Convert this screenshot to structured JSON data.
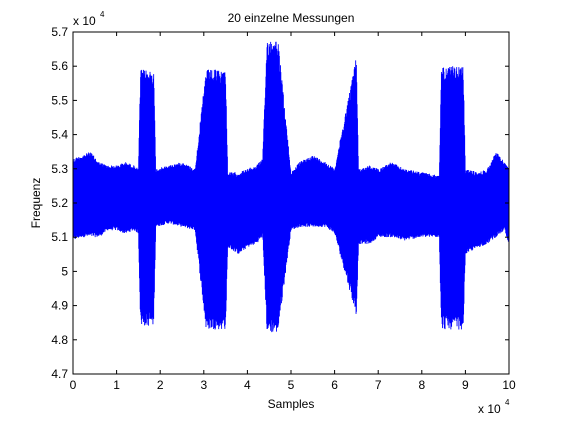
{
  "chart_data": {
    "type": "line",
    "title": "20 einzelne Messungen",
    "xlabel": "Samples",
    "ylabel": "Frequenz",
    "xlim": [
      0,
      100000
    ],
    "ylim": [
      47000,
      57000
    ],
    "x_ticks": [
      0,
      10000,
      20000,
      30000,
      40000,
      50000,
      60000,
      70000,
      80000,
      90000,
      100000
    ],
    "y_ticks": [
      47000,
      48000,
      49000,
      50000,
      51000,
      52000,
      53000,
      54000,
      55000,
      56000,
      57000
    ],
    "x_tick_labels": [
      "0",
      "1",
      "2",
      "3",
      "4",
      "5",
      "6",
      "7",
      "8",
      "9",
      "10"
    ],
    "y_tick_labels": [
      "4.7",
      "4.8",
      "4.9",
      "5",
      "5.1",
      "5.2",
      "5.3",
      "5.4",
      "5.5",
      "5.6",
      "5.7"
    ],
    "x_exponent": {
      "base": "x 10",
      "power": "4"
    },
    "y_exponent": {
      "base": "x 10",
      "power": "4"
    },
    "grid": false,
    "series": [
      {
        "color": "#0000ff",
        "band_envelope": {
          "x": [
            0,
            2000,
            4000,
            6000,
            8000,
            10000,
            12000,
            14000,
            15000,
            15500,
            18500,
            19000,
            22000,
            25000,
            28000,
            30500,
            35000,
            35500,
            38000,
            40000,
            42000,
            43500,
            44500,
            47000,
            50000,
            52000,
            55000,
            58000,
            60000,
            65000,
            65500,
            68000,
            70000,
            73000,
            76000,
            80000,
            84000,
            84500,
            89500,
            90000,
            93000,
            95000,
            97000,
            99000,
            100000
          ],
          "upper": [
            53300,
            53400,
            53500,
            53200,
            53100,
            53100,
            53200,
            53100,
            53000,
            55900,
            55900,
            53000,
            53100,
            53200,
            53000,
            55900,
            55900,
            52900,
            52900,
            53000,
            53100,
            53300,
            56800,
            56800,
            52900,
            53200,
            53400,
            53200,
            53000,
            56300,
            53000,
            53100,
            53000,
            53200,
            53000,
            52900,
            52800,
            56000,
            56000,
            53000,
            52900,
            53000,
            53500,
            53200,
            53000
          ],
          "lower": [
            50900,
            51000,
            51000,
            51000,
            51200,
            51200,
            51100,
            51200,
            51100,
            48400,
            48400,
            51300,
            51400,
            51300,
            51200,
            48300,
            48300,
            50700,
            50500,
            50700,
            50800,
            51000,
            48200,
            48200,
            51200,
            51300,
            51300,
            51300,
            51100,
            48700,
            50800,
            50800,
            51000,
            51000,
            50900,
            51000,
            51000,
            48300,
            48300,
            50500,
            50700,
            50800,
            51000,
            51200,
            50700
          ]
        }
      }
    ]
  }
}
